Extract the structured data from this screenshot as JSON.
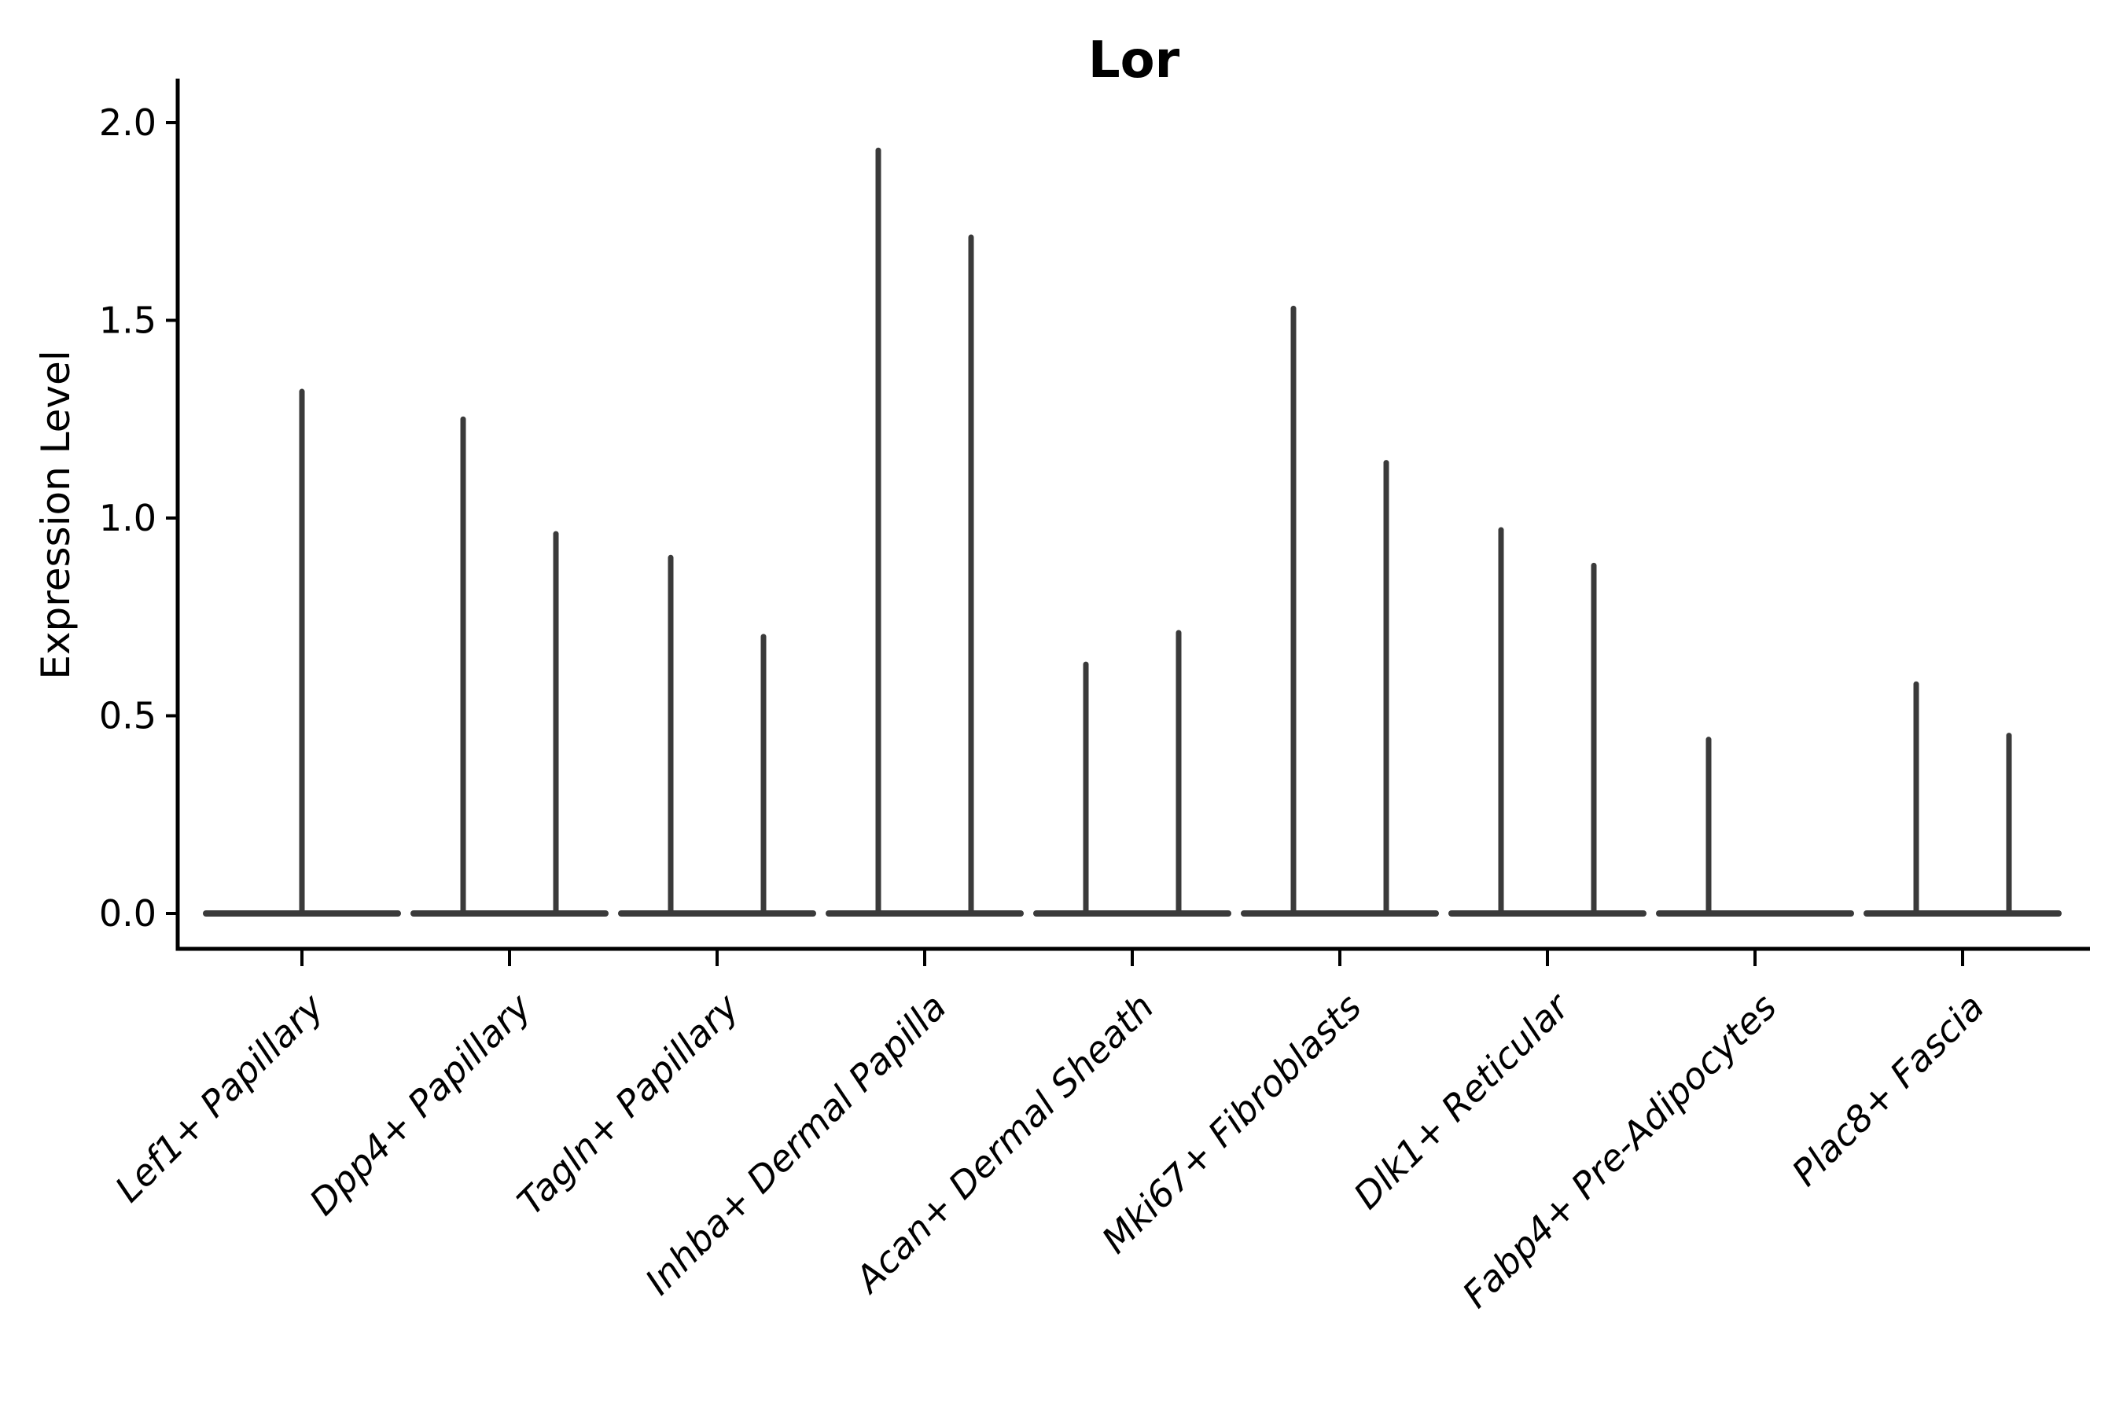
{
  "figure": {
    "background": "#ffffff"
  },
  "chart_data": {
    "type": "violin",
    "title": "Lor",
    "xlabel": "",
    "ylabel": "Expression Level",
    "ylim": [
      -0.09,
      2.11
    ],
    "grid": false,
    "legend": "none",
    "xtick_rotation": 45,
    "violin_color": "#3A3A3A",
    "axis_color": "#000000",
    "yticks": [
      {
        "label": "0.0",
        "value": 0.0
      },
      {
        "label": "0.5",
        "value": 0.5
      },
      {
        "label": "1.0",
        "value": 1.0
      },
      {
        "label": "1.5",
        "value": 1.5
      },
      {
        "label": "2.0",
        "value": 2.0
      }
    ],
    "categories": [
      {
        "label": "Lef1+ Papillary",
        "violins": [
          {
            "position": "center",
            "max": 1.32
          }
        ]
      },
      {
        "label": "Dpp4+ Papillary",
        "violins": [
          {
            "position": "left",
            "max": 1.25
          },
          {
            "position": "right",
            "max": 0.96
          }
        ]
      },
      {
        "label": "Tagln+ Papillary",
        "violins": [
          {
            "position": "left",
            "max": 0.9
          },
          {
            "position": "right",
            "max": 0.7
          }
        ]
      },
      {
        "label": "Inhba+ Dermal Papilla",
        "violins": [
          {
            "position": "left",
            "max": 1.93
          },
          {
            "position": "right",
            "max": 1.71
          }
        ]
      },
      {
        "label": "Acan+ Dermal Sheath",
        "violins": [
          {
            "position": "left",
            "max": 0.63
          },
          {
            "position": "right",
            "max": 0.71
          }
        ]
      },
      {
        "label": "Mki67+ Fibroblasts",
        "violins": [
          {
            "position": "left",
            "max": 1.53
          },
          {
            "position": "right",
            "max": 1.14
          }
        ]
      },
      {
        "label": "Dlk1+ Reticular",
        "violins": [
          {
            "position": "left",
            "max": 0.97
          },
          {
            "position": "right",
            "max": 0.88
          }
        ]
      },
      {
        "label": "Fabp4+ Pre-Adipocytes",
        "violins": [
          {
            "position": "left",
            "max": 0.44
          }
        ]
      },
      {
        "label": "Plac8+ Fascia",
        "violins": [
          {
            "position": "left",
            "max": 0.58
          },
          {
            "position": "right",
            "max": 0.45
          }
        ]
      }
    ]
  }
}
